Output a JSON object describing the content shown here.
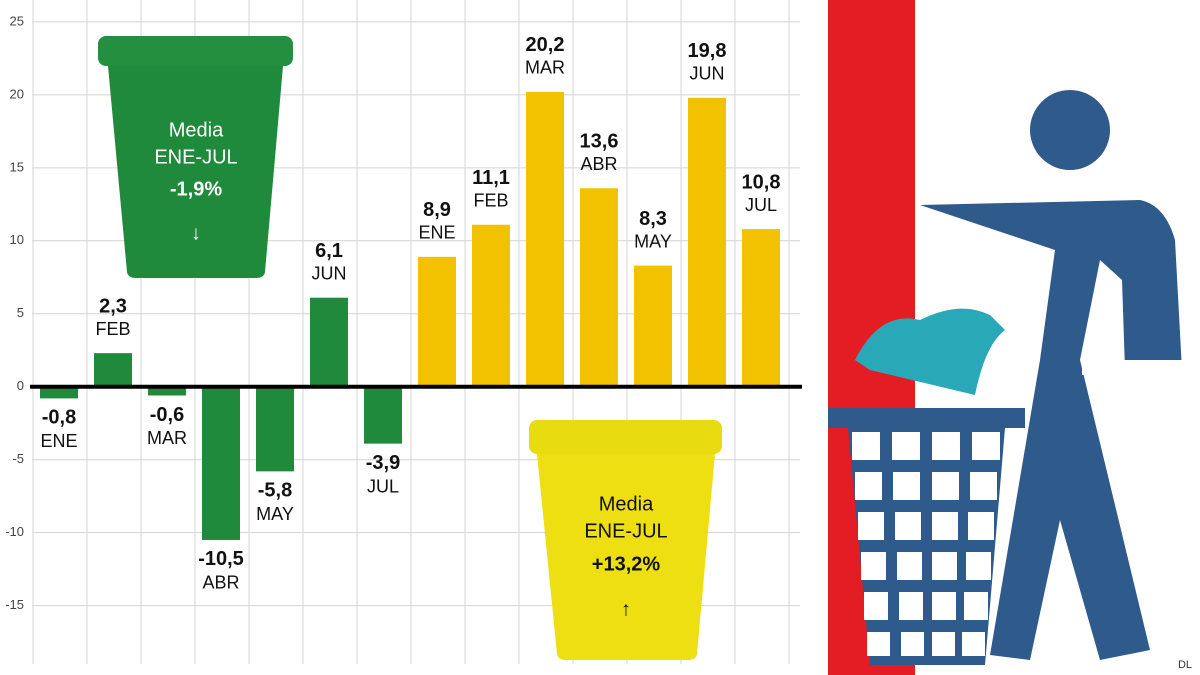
{
  "chart_data": {
    "type": "bar",
    "ylim": [
      -19,
      26.5
    ],
    "yticks": [
      25,
      20,
      15,
      10,
      5,
      0,
      -5,
      -10,
      -15
    ],
    "grid": true,
    "series": [
      {
        "color": "#1f8a3b",
        "categories": [
          "ENE",
          "FEB",
          "MAR",
          "ABR",
          "MAY",
          "JUN",
          "JUL"
        ],
        "values": [
          -0.8,
          2.3,
          -0.6,
          -10.5,
          -5.8,
          6.1,
          -3.9
        ],
        "value_labels": [
          "-0,8",
          "2,3",
          "-0,6",
          "-10,5",
          "-5,8",
          "6,1",
          "-3,9"
        ]
      },
      {
        "color": "#f2c200",
        "categories": [
          "ENE",
          "FEB",
          "MAR",
          "ABR",
          "MAY",
          "JUN",
          "JUL"
        ],
        "values": [
          8.9,
          11.1,
          20.2,
          13.6,
          8.3,
          19.8,
          10.8
        ],
        "value_labels": [
          "8,9",
          "11,1",
          "20,2",
          "13,6",
          "8,3",
          "19,8",
          "10,8"
        ]
      }
    ],
    "annotations": [
      {
        "lines": [
          "Media",
          "ENE-JUL"
        ],
        "label": "-1,9%",
        "arrow": "↓"
      },
      {
        "lines": [
          "Media",
          "ENE-JUL"
        ],
        "label": "+13,2%",
        "arrow": "↑"
      }
    ],
    "credit": "DL"
  }
}
